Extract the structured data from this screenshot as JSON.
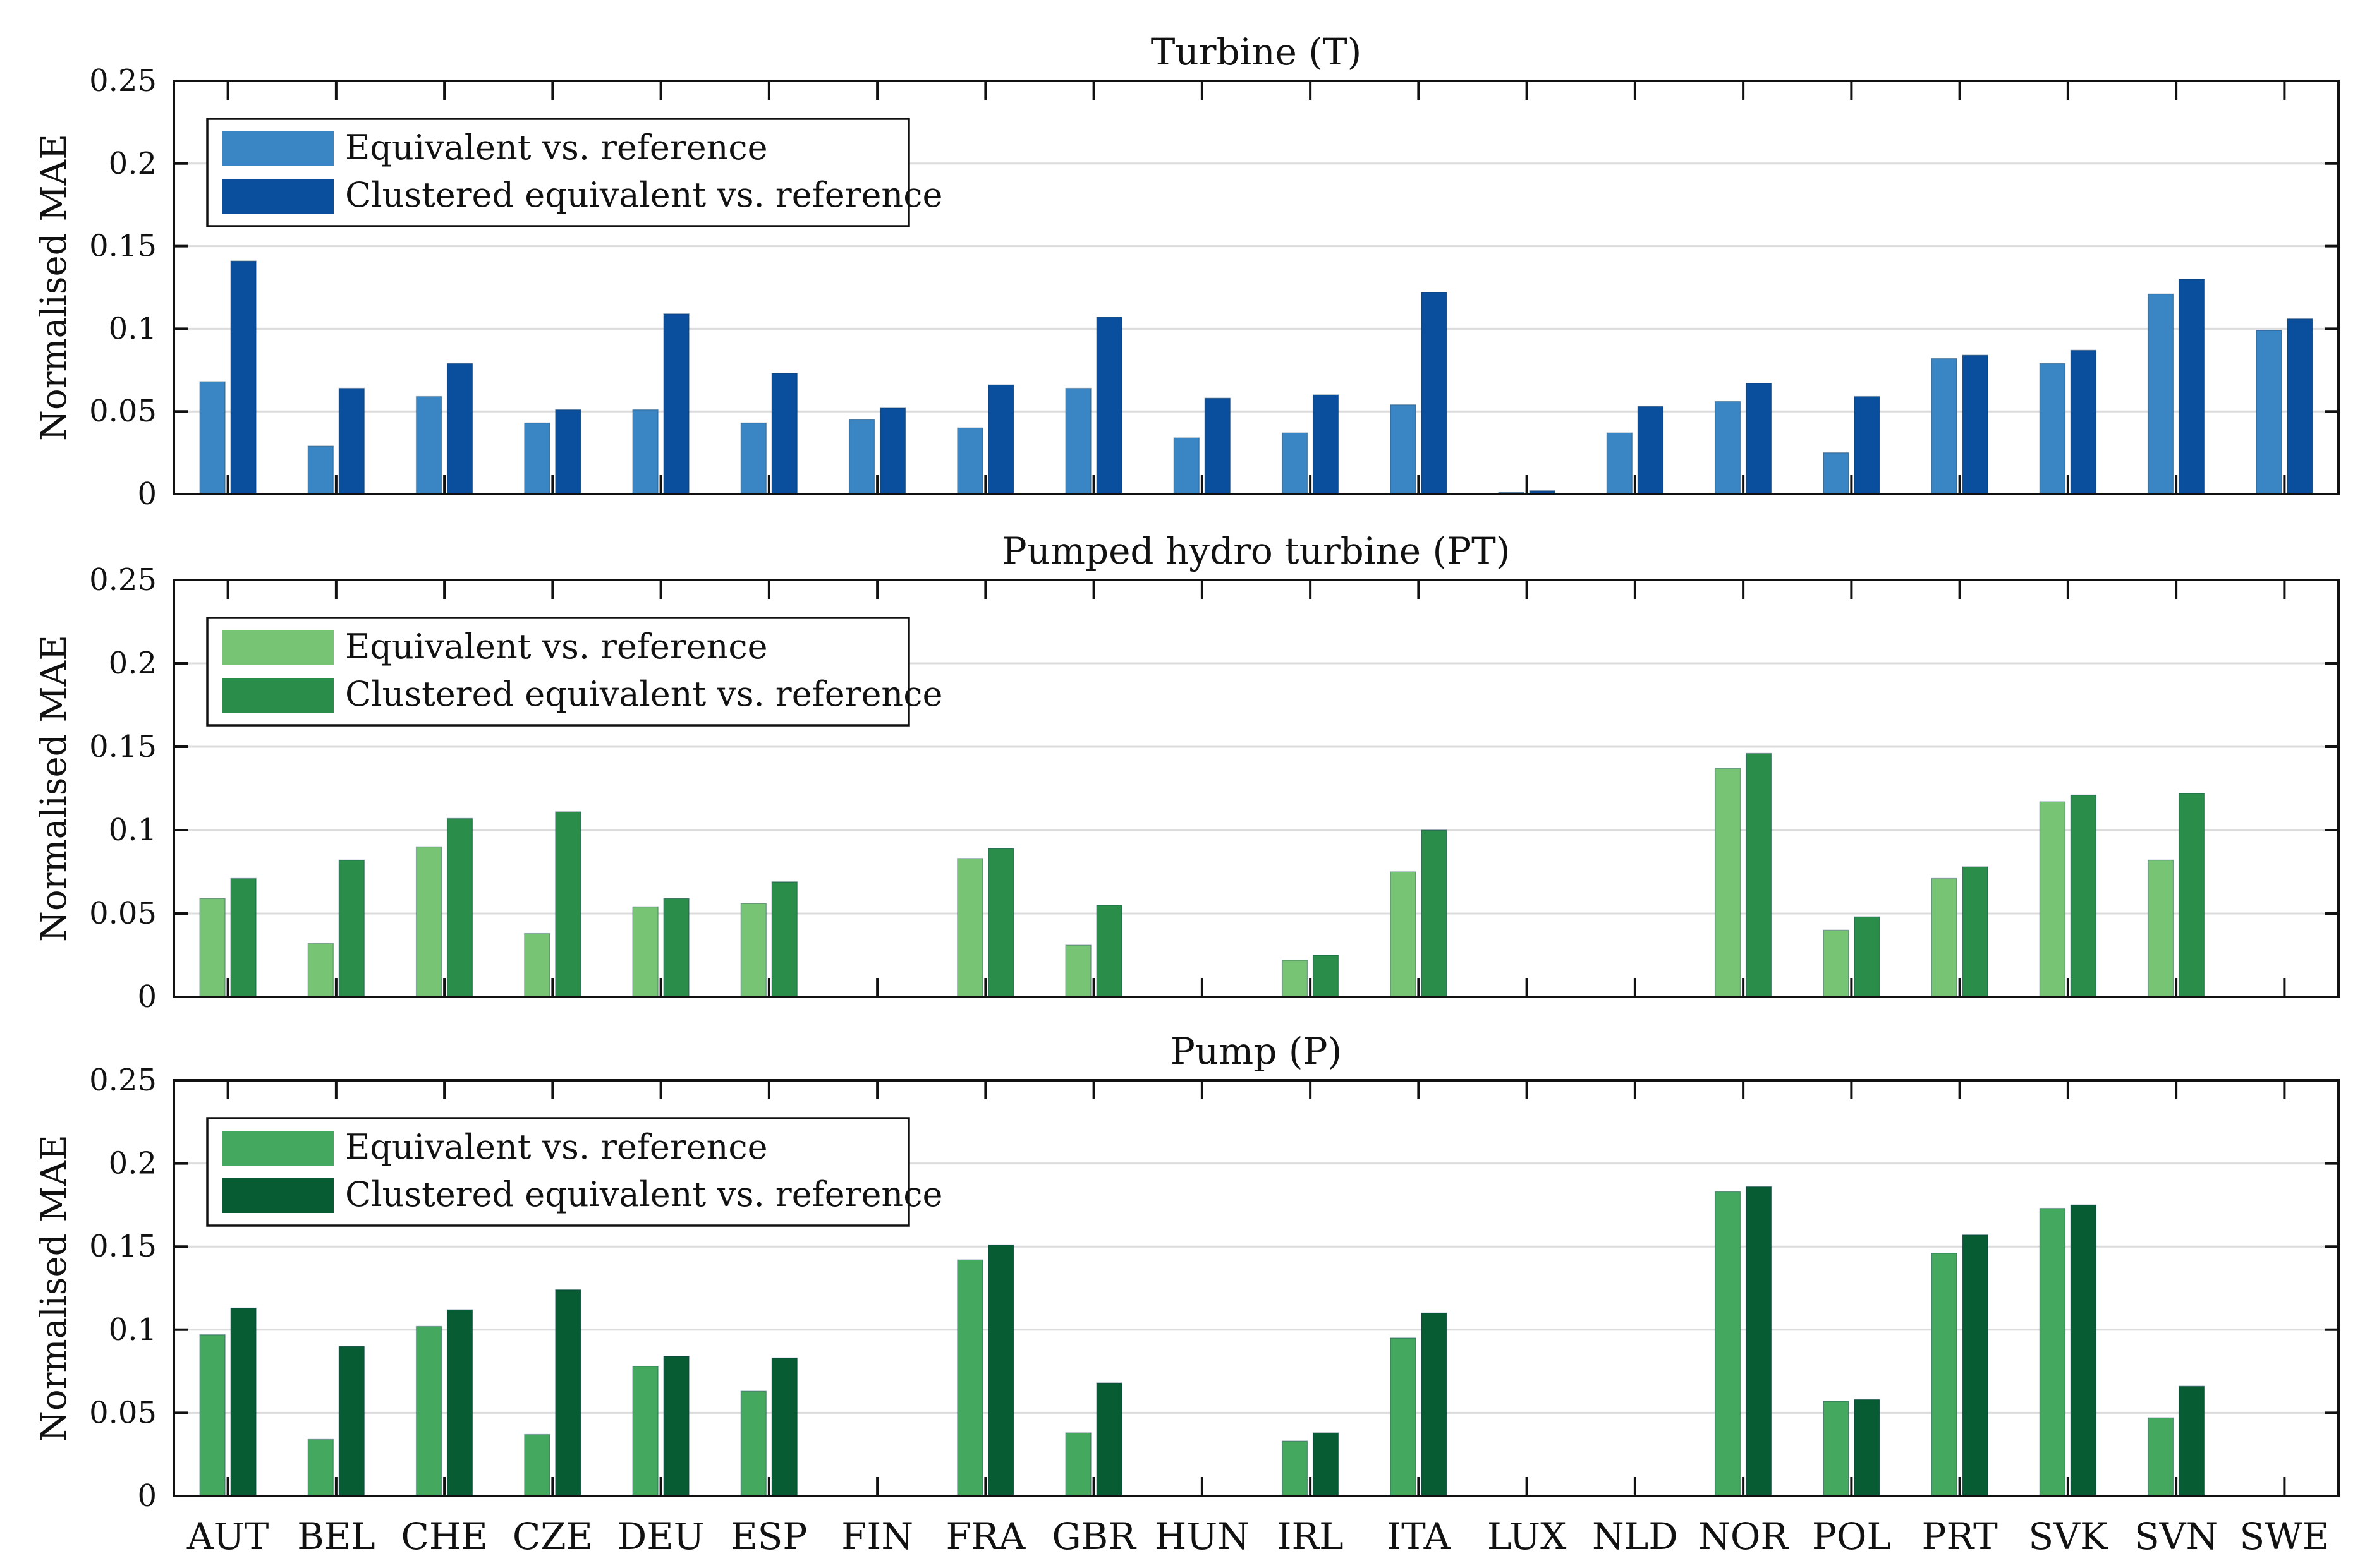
{
  "figure": {
    "ylabel": "Normalised MAE",
    "categories": [
      "AUT",
      "BEL",
      "CHE",
      "CZE",
      "DEU",
      "ESP",
      "FIN",
      "FRA",
      "GBR",
      "HUN",
      "IRL",
      "ITA",
      "LUX",
      "NLD",
      "NOR",
      "POL",
      "PRT",
      "SVK",
      "SVN",
      "SWE"
    ]
  },
  "chart_data": [
    {
      "type": "bar",
      "title": "Turbine (T)",
      "ylabel": "Normalised MAE",
      "ylim": [
        0,
        0.25
      ],
      "yticks": [
        "0",
        "0.05",
        "0.1",
        "0.15",
        "0.2",
        "0.25"
      ],
      "grid": true,
      "legend": "top-left",
      "categories": [
        "AUT",
        "BEL",
        "CHE",
        "CZE",
        "DEU",
        "ESP",
        "FIN",
        "FRA",
        "GBR",
        "HUN",
        "IRL",
        "ITA",
        "LUX",
        "NLD",
        "NOR",
        "POL",
        "PRT",
        "SVK",
        "SVN",
        "SWE"
      ],
      "series": [
        {
          "name": "Equivalent vs. reference",
          "color": "#3a86c4",
          "values": [
            0.068,
            0.029,
            0.059,
            0.043,
            0.051,
            0.043,
            0.045,
            0.04,
            0.064,
            0.034,
            0.037,
            0.054,
            0.001,
            0.037,
            0.056,
            0.025,
            0.082,
            0.079,
            0.121,
            0.099
          ]
        },
        {
          "name": "Clustered equivalent vs. reference",
          "color": "#0a4f9e",
          "values": [
            0.141,
            0.064,
            0.079,
            0.051,
            0.109,
            0.073,
            0.052,
            0.066,
            0.107,
            0.058,
            0.06,
            0.122,
            0.002,
            0.053,
            0.067,
            0.059,
            0.084,
            0.087,
            0.13,
            0.106
          ]
        }
      ]
    },
    {
      "type": "bar",
      "title": "Pumped hydro turbine (PT)",
      "ylabel": "Normalised MAE",
      "ylim": [
        0,
        0.25
      ],
      "yticks": [
        "0",
        "0.05",
        "0.1",
        "0.15",
        "0.2",
        "0.25"
      ],
      "grid": true,
      "legend": "top-left",
      "categories": [
        "AUT",
        "BEL",
        "CHE",
        "CZE",
        "DEU",
        "ESP",
        "FIN",
        "FRA",
        "GBR",
        "HUN",
        "IRL",
        "ITA",
        "LUX",
        "NLD",
        "NOR",
        "POL",
        "PRT",
        "SVK",
        "SVN",
        "SWE"
      ],
      "series": [
        {
          "name": "Equivalent vs. reference",
          "color": "#78c475",
          "values": [
            0.059,
            0.032,
            0.09,
            0.038,
            0.054,
            0.056,
            0,
            0.083,
            0.031,
            0,
            0.022,
            0.075,
            0,
            0,
            0.137,
            0.04,
            0.071,
            0.117,
            0.082,
            0
          ]
        },
        {
          "name": "Clustered equivalent vs. reference",
          "color": "#2a8d4a",
          "values": [
            0.071,
            0.082,
            0.107,
            0.111,
            0.059,
            0.069,
            0,
            0.089,
            0.055,
            0,
            0.025,
            0.1,
            0,
            0,
            0.146,
            0.048,
            0.078,
            0.121,
            0.122,
            0
          ]
        }
      ]
    },
    {
      "type": "bar",
      "title": "Pump (P)",
      "ylabel": "Normalised MAE",
      "ylim": [
        0,
        0.25
      ],
      "yticks": [
        "0",
        "0.05",
        "0.1",
        "0.15",
        "0.2",
        "0.25"
      ],
      "grid": true,
      "legend": "top-left",
      "categories": [
        "AUT",
        "BEL",
        "CHE",
        "CZE",
        "DEU",
        "ESP",
        "FIN",
        "FRA",
        "GBR",
        "HUN",
        "IRL",
        "ITA",
        "LUX",
        "NLD",
        "NOR",
        "POL",
        "PRT",
        "SVK",
        "SVN",
        "SWE"
      ],
      "series": [
        {
          "name": "Equivalent vs. reference",
          "color": "#44a85f",
          "values": [
            0.097,
            0.034,
            0.102,
            0.037,
            0.078,
            0.063,
            0,
            0.142,
            0.038,
            0,
            0.033,
            0.095,
            0,
            0,
            0.183,
            0.057,
            0.146,
            0.173,
            0.047,
            0
          ]
        },
        {
          "name": "Clustered equivalent vs. reference",
          "color": "#075c33",
          "values": [
            0.113,
            0.09,
            0.112,
            0.124,
            0.084,
            0.083,
            0,
            0.151,
            0.068,
            0,
            0.038,
            0.11,
            0,
            0,
            0.186,
            0.058,
            0.157,
            0.175,
            0.066,
            0
          ]
        }
      ]
    }
  ]
}
